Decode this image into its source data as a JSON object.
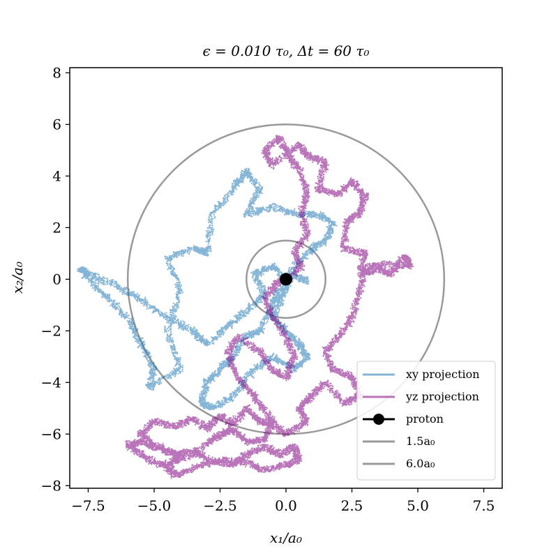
{
  "chart_data": {
    "type": "line",
    "title": "ϵ = 0.010 τ₀,  Δt = 60 τ₀",
    "xlabel": "x₁/a₀",
    "ylabel": "x₂/a₀",
    "xlim": [
      -8.2,
      8.2
    ],
    "ylim": [
      -8.1,
      8.2
    ],
    "x_ticks": [
      "−7.5",
      "−5.0",
      "−2.5",
      "0.0",
      "2.5",
      "5.0",
      "7.5"
    ],
    "x_tick_values": [
      -7.5,
      -5.0,
      -2.5,
      0.0,
      2.5,
      5.0,
      7.5
    ],
    "y_ticks": [
      "−8",
      "−6",
      "−4",
      "−2",
      "0",
      "2",
      "4",
      "6",
      "8"
    ],
    "y_tick_values": [
      -8,
      -6,
      -4,
      -2,
      0,
      2,
      4,
      6,
      8
    ],
    "grid": false,
    "legend_position": "lower-right",
    "series": [
      {
        "name": "xy projection",
        "kind": "trajectory",
        "color": "#1f77b4",
        "points": [
          [
            0.0,
            0.0
          ],
          [
            -0.5,
            0.5
          ],
          [
            -1.2,
            0.2
          ],
          [
            -0.8,
            -0.6
          ],
          [
            -1.5,
            -1.2
          ],
          [
            -2.2,
            -1.8
          ],
          [
            -3.0,
            -2.5
          ],
          [
            -3.5,
            -2.0
          ],
          [
            -4.5,
            -1.5
          ],
          [
            -5.5,
            -0.8
          ],
          [
            -6.5,
            -0.2
          ],
          [
            -7.5,
            0.2
          ],
          [
            -7.8,
            0.4
          ],
          [
            -7.0,
            -0.5
          ],
          [
            -6.0,
            -1.5
          ],
          [
            -5.5,
            -2.5
          ],
          [
            -5.0,
            -3.5
          ],
          [
            -5.2,
            -4.2
          ],
          [
            -4.0,
            -3.5
          ],
          [
            -4.5,
            -2.0
          ],
          [
            -4.0,
            -0.5
          ],
          [
            -4.5,
            0.8
          ],
          [
            -3.5,
            1.2
          ],
          [
            -3.0,
            1.0
          ],
          [
            -2.8,
            2.5
          ],
          [
            -2.0,
            3.5
          ],
          [
            -1.5,
            4.2
          ],
          [
            -1.0,
            3.5
          ],
          [
            -1.5,
            2.5
          ],
          [
            -0.5,
            2.8
          ],
          [
            0.5,
            2.5
          ],
          [
            1.2,
            2.5
          ],
          [
            1.8,
            2.2
          ],
          [
            1.5,
            1.5
          ],
          [
            1.0,
            1.2
          ],
          [
            0.3,
            0.5
          ],
          [
            -0.3,
            -0.5
          ],
          [
            -0.5,
            -1.0
          ],
          [
            -1.0,
            -2.0
          ],
          [
            -1.5,
            -2.2
          ],
          [
            -2.0,
            -3.0
          ],
          [
            -2.5,
            -3.5
          ],
          [
            -3.0,
            -4.0
          ],
          [
            -3.2,
            -4.8
          ],
          [
            -2.8,
            -5.0
          ],
          [
            -2.0,
            -4.5
          ],
          [
            -1.2,
            -3.5
          ],
          [
            -0.5,
            -3.0
          ],
          [
            0.3,
            -3.5
          ],
          [
            0.8,
            -3.0
          ],
          [
            0.5,
            -2.5
          ],
          [
            0.0,
            -2.0
          ],
          [
            -0.5,
            -1.5
          ],
          [
            -0.2,
            -0.8
          ],
          [
            0.0,
            -0.3
          ],
          [
            0.3,
            0.2
          ],
          [
            0.8,
            -0.1
          ]
        ]
      },
      {
        "name": "yz projection",
        "kind": "trajectory",
        "color": "#800080",
        "points": [
          [
            0.0,
            0.0
          ],
          [
            0.6,
            0.5
          ],
          [
            0.3,
            1.0
          ],
          [
            0.8,
            1.8
          ],
          [
            0.6,
            2.6
          ],
          [
            0.8,
            3.4
          ],
          [
            0.5,
            4.2
          ],
          [
            0.1,
            4.8
          ],
          [
            -0.3,
            5.5
          ],
          [
            -0.8,
            5.0
          ],
          [
            -0.5,
            4.4
          ],
          [
            0.5,
            5.2
          ],
          [
            0.8,
            4.8
          ],
          [
            1.5,
            4.5
          ],
          [
            1.2,
            3.5
          ],
          [
            2.0,
            3.3
          ],
          [
            2.5,
            3.8
          ],
          [
            3.0,
            3.2
          ],
          [
            2.8,
            2.6
          ],
          [
            2.3,
            2.2
          ],
          [
            2.2,
            1.2
          ],
          [
            3.0,
            1.0
          ],
          [
            2.8,
            0.2
          ],
          [
            3.5,
            0.4
          ],
          [
            4.0,
            0.2
          ],
          [
            4.5,
            0.9
          ],
          [
            4.7,
            0.5
          ],
          [
            3.8,
            0.6
          ],
          [
            3.0,
            0.5
          ],
          [
            2.8,
            -0.5
          ],
          [
            2.5,
            -1.5
          ],
          [
            2.0,
            -2.2
          ],
          [
            1.5,
            -2.8
          ],
          [
            1.8,
            -3.5
          ],
          [
            2.5,
            -3.8
          ],
          [
            2.8,
            -4.5
          ],
          [
            2.2,
            -4.8
          ],
          [
            1.5,
            -4.0
          ],
          [
            1.0,
            -4.5
          ],
          [
            0.5,
            -5.0
          ],
          [
            0.8,
            -5.5
          ],
          [
            0.0,
            -6.0
          ],
          [
            -0.5,
            -5.6
          ],
          [
            -1.0,
            -5.5
          ],
          [
            -1.5,
            -5.0
          ],
          [
            -2.0,
            -5.6
          ],
          [
            -2.5,
            -5.3
          ],
          [
            -3.0,
            -5.8
          ],
          [
            -3.5,
            -5.4
          ],
          [
            -4.2,
            -5.7
          ],
          [
            -5.0,
            -5.5
          ],
          [
            -5.5,
            -6.0
          ],
          [
            -5.0,
            -6.4
          ],
          [
            -4.2,
            -6.8
          ],
          [
            -3.5,
            -6.6
          ],
          [
            -3.0,
            -7.0
          ],
          [
            -2.0,
            -7.2
          ],
          [
            -1.5,
            -6.8
          ],
          [
            -0.8,
            -6.5
          ],
          [
            -0.2,
            -6.8
          ],
          [
            0.3,
            -6.5
          ],
          [
            0.5,
            -7.0
          ],
          [
            0.0,
            -7.2
          ],
          [
            -0.8,
            -7.4
          ],
          [
            -1.5,
            -7.1
          ],
          [
            -2.5,
            -7.0
          ],
          [
            -3.5,
            -7.3
          ],
          [
            -4.2,
            -7.6
          ],
          [
            -4.5,
            -7.3
          ],
          [
            -4.0,
            -6.8
          ],
          [
            -5.0,
            -6.5
          ],
          [
            -5.5,
            -6.3
          ],
          [
            -6.0,
            -6.4
          ],
          [
            -5.5,
            -6.8
          ],
          [
            -4.8,
            -7.2
          ],
          [
            -4.0,
            -7.0
          ],
          [
            -3.0,
            -6.4
          ],
          [
            -2.5,
            -6.0
          ],
          [
            -2.0,
            -5.8
          ],
          [
            -1.5,
            -6.3
          ],
          [
            -0.8,
            -6.2
          ],
          [
            -0.5,
            -5.5
          ],
          [
            -1.0,
            -4.8
          ],
          [
            -1.5,
            -4.2
          ],
          [
            -2.0,
            -3.5
          ],
          [
            -2.2,
            -2.8
          ],
          [
            -1.8,
            -2.2
          ],
          [
            -1.0,
            -2.8
          ],
          [
            -0.5,
            -3.5
          ],
          [
            0.0,
            -3.8
          ],
          [
            0.3,
            -3.0
          ],
          [
            0.0,
            -2.2
          ],
          [
            -0.5,
            -1.5
          ],
          [
            -0.8,
            -0.8
          ],
          [
            -0.4,
            -0.2
          ],
          [
            0.0,
            0.0
          ]
        ]
      },
      {
        "name": "proton",
        "kind": "marker",
        "color": "#000000",
        "x": 0.0,
        "y": 0.0
      },
      {
        "name": "1.5a₀",
        "kind": "circle",
        "color": "#999999",
        "radius": 1.5
      },
      {
        "name": "6.0a₀",
        "kind": "circle",
        "color": "#999999",
        "radius": 6.0
      }
    ]
  }
}
